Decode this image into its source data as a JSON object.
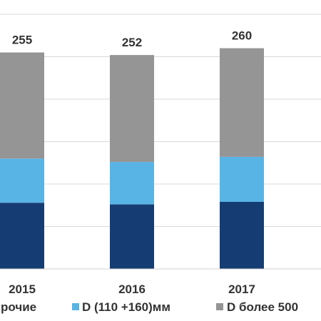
{
  "chart_data": {
    "type": "bar",
    "stacked": true,
    "categories": [
      "2015",
      "2016",
      "2017"
    ],
    "totals": [
      255,
      252,
      260
    ],
    "series": [
      {
        "name": "Прочие",
        "color": "#163d73",
        "values": [
          78,
          76,
          79
        ]
      },
      {
        "name": "D (110 +160)мм",
        "color": "#58b4e5",
        "values": [
          52,
          50,
          53
        ]
      },
      {
        "name": "D более 500",
        "color": "#959595",
        "values": [
          125,
          126,
          128
        ]
      }
    ],
    "ylim": [
      0,
      300
    ],
    "grid": true,
    "legend_position": "bottom"
  },
  "legend_visible_labels": [
    "рочие",
    "D (110 +160)мм",
    "D более 500"
  ]
}
